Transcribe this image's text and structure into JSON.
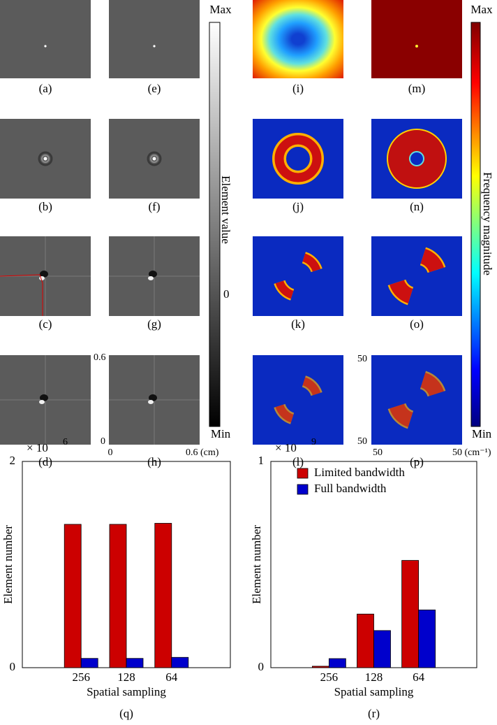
{
  "panel_labels": [
    "(a)",
    "(e)",
    "(i)",
    "(m)",
    "(b)",
    "(f)",
    "(j)",
    "(n)",
    "(c)",
    "(g)",
    "(k)",
    "(o)",
    "(d)",
    "(h)",
    "(l)",
    "(p)"
  ],
  "colorbar_gray": {
    "max": "Max",
    "label": "Element value",
    "mid": "0",
    "min": "Min"
  },
  "colorbar_jet": {
    "max": "Max",
    "label": "Frequency magnitude",
    "min": "Min"
  },
  "space_axis": {
    "y_top": "0.6",
    "y_bottom": "0",
    "x_left": "0",
    "x_right": "0.6 (cm)"
  },
  "freq_axis": {
    "y_top": "50",
    "y_bottom": "50",
    "x_left": "50",
    "x_right": "50 (cm⁻¹)"
  },
  "chart_data": [
    {
      "type": "bar",
      "caption": "(q)",
      "xlabel": "Spatial sampling",
      "ylabel": "Element number",
      "y_multiplier": "× 10",
      "y_multiplier_exponent": "6",
      "categories": [
        "256",
        "128",
        "64"
      ],
      "series": [
        {
          "color": "#cc0000",
          "values": [
            1.39,
            1.39,
            1.4
          ]
        },
        {
          "color": "#0000cc",
          "values": [
            0.09,
            0.09,
            0.1
          ]
        }
      ],
      "ylim": [
        0,
        2
      ],
      "yticks": [
        0,
        2
      ]
    },
    {
      "type": "bar",
      "caption": "(r)",
      "xlabel": "Spatial sampling",
      "ylabel": "Element number",
      "y_multiplier": "× 10",
      "y_multiplier_exponent": "9",
      "categories": [
        "256",
        "128",
        "64"
      ],
      "series": [
        {
          "name": "Limited bandwidth",
          "color": "#cc0000",
          "values": [
            0.007,
            0.26,
            0.52
          ]
        },
        {
          "name": "Full bandwidth",
          "color": "#0000cc",
          "values": [
            0.044,
            0.18,
            0.28
          ]
        }
      ],
      "ylim": [
        0,
        1
      ],
      "yticks": [
        0,
        1
      ],
      "legend": "upper left"
    }
  ]
}
